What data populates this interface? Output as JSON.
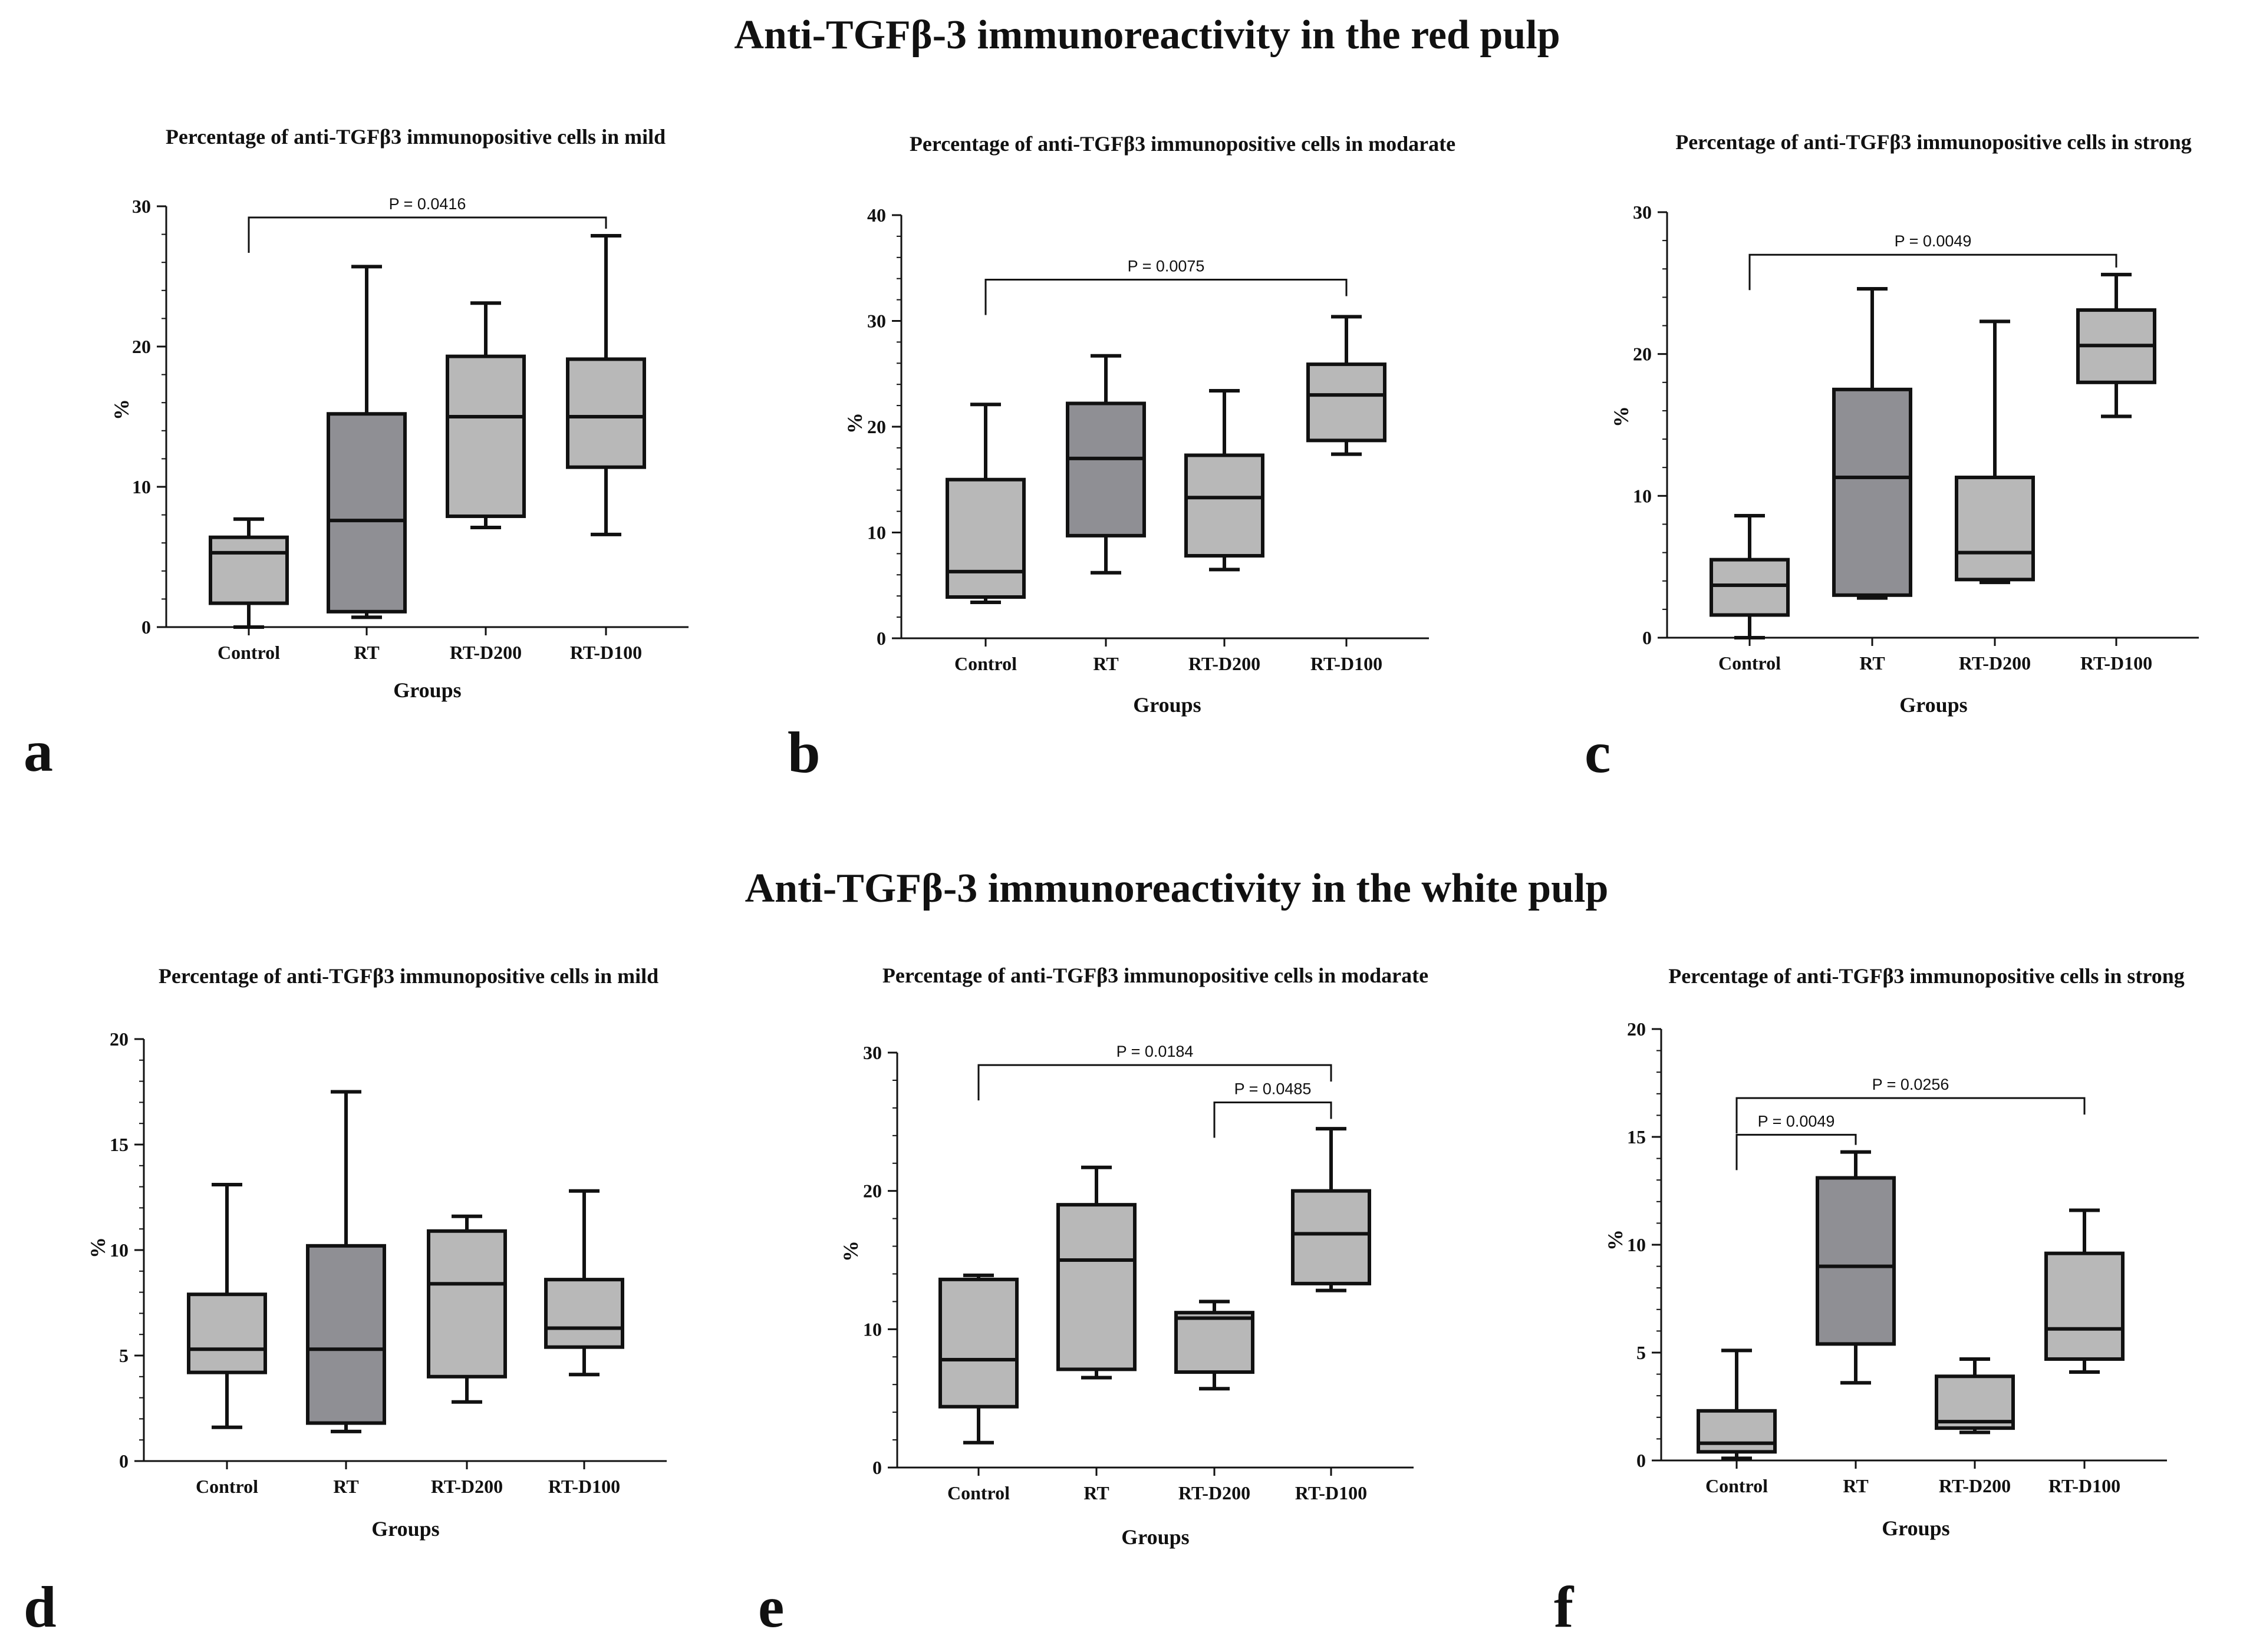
{
  "figure": {
    "section_titles": [
      "Anti-TGFβ-3 immunoreactivity in the red pulp",
      "Anti-TGFβ-3 immunoreactivity in the white pulp"
    ]
  },
  "colors": {
    "box_light": "#b8b8b8",
    "box_dark": "#8f8f94",
    "stroke": "#111111"
  },
  "chart_data": [
    {
      "type": "box",
      "letter": "a",
      "title": "Percentage of anti-TGFβ3 immunopositive cells in mild",
      "xlabel": "Groups",
      "ylabel": "%",
      "ylim": [
        0,
        30
      ],
      "yticks": [
        0,
        10,
        20,
        30
      ],
      "categories": [
        "Control",
        "RT",
        "RT-D200",
        "RT-D100"
      ],
      "boxes": [
        {
          "min": 0,
          "q1": 1.7,
          "median": 5.3,
          "q3": 6.4,
          "max": 7.7,
          "shade": "light"
        },
        {
          "min": 0.7,
          "q1": 1.1,
          "median": 7.6,
          "q3": 15.2,
          "max": 25.7,
          "shade": "dark"
        },
        {
          "min": 7.1,
          "q1": 7.9,
          "median": 15.0,
          "q3": 19.3,
          "max": 23.1,
          "shade": "light"
        },
        {
          "min": 6.6,
          "q1": 11.4,
          "median": 15.0,
          "q3": 19.1,
          "max": 27.9,
          "shade": "light"
        }
      ],
      "significance": [
        {
          "from": 0,
          "to": 3,
          "label": "P = 0.0416",
          "y": 29.2
        }
      ]
    },
    {
      "type": "box",
      "letter": "b",
      "title": "Percentage of anti-TGFβ3 immunopositive cells in modarate",
      "xlabel": "Groups",
      "ylabel": "%",
      "ylim": [
        0,
        40
      ],
      "yticks": [
        0,
        10,
        20,
        30,
        40
      ],
      "categories": [
        "Control",
        "RT",
        "RT-D200",
        "RT-D100"
      ],
      "boxes": [
        {
          "min": 3.4,
          "q1": 3.9,
          "median": 6.3,
          "q3": 15.0,
          "max": 22.1,
          "shade": "light"
        },
        {
          "min": 6.2,
          "q1": 9.7,
          "median": 17.0,
          "q3": 22.2,
          "max": 26.7,
          "shade": "dark"
        },
        {
          "min": 6.5,
          "q1": 7.8,
          "median": 13.3,
          "q3": 17.3,
          "max": 23.4,
          "shade": "light"
        },
        {
          "min": 17.4,
          "q1": 18.7,
          "median": 23.0,
          "q3": 25.9,
          "max": 30.4,
          "shade": "light"
        }
      ],
      "significance": [
        {
          "from": 0,
          "to": 3,
          "label": "P = 0.0075",
          "y": 33.9
        }
      ]
    },
    {
      "type": "box",
      "letter": "c",
      "title": "Percentage of anti-TGFβ3 immunopositive cells in strong",
      "xlabel": "Groups",
      "ylabel": "%",
      "ylim": [
        0,
        30
      ],
      "yticks": [
        0,
        10,
        20,
        30
      ],
      "categories": [
        "Control",
        "RT",
        "RT-D200",
        "RT-D100"
      ],
      "boxes": [
        {
          "min": 0,
          "q1": 1.6,
          "median": 3.7,
          "q3": 5.5,
          "max": 8.6,
          "shade": "light"
        },
        {
          "min": 2.8,
          "q1": 3.0,
          "median": 11.3,
          "q3": 17.5,
          "max": 24.6,
          "shade": "dark"
        },
        {
          "min": 3.9,
          "q1": 4.1,
          "median": 6.0,
          "q3": 11.3,
          "max": 22.3,
          "shade": "light"
        },
        {
          "min": 15.6,
          "q1": 18.0,
          "median": 20.6,
          "q3": 23.1,
          "max": 25.6,
          "shade": "light"
        }
      ],
      "significance": [
        {
          "from": 0,
          "to": 3,
          "label": "P = 0.0049",
          "y": 27.0
        }
      ]
    },
    {
      "type": "box",
      "letter": "d",
      "title": "Percentage of anti-TGFβ3 immunopositive cells in mild",
      "xlabel": "Groups",
      "ylabel": "%",
      "ylim": [
        0,
        20
      ],
      "yticks": [
        0,
        5,
        10,
        15,
        20
      ],
      "categories": [
        "Control",
        "RT",
        "RT-D200",
        "RT-D100"
      ],
      "boxes": [
        {
          "min": 1.6,
          "q1": 4.2,
          "median": 5.3,
          "q3": 7.9,
          "max": 13.1,
          "shade": "light"
        },
        {
          "min": 1.4,
          "q1": 1.8,
          "median": 5.3,
          "q3": 10.2,
          "max": 17.5,
          "shade": "dark"
        },
        {
          "min": 2.8,
          "q1": 4.0,
          "median": 8.4,
          "q3": 10.9,
          "max": 11.6,
          "shade": "light"
        },
        {
          "min": 4.1,
          "q1": 5.4,
          "median": 6.3,
          "q3": 8.6,
          "max": 12.8,
          "shade": "light"
        }
      ],
      "significance": []
    },
    {
      "type": "box",
      "letter": "e",
      "title": "Percentage of anti-TGFβ3 immunopositive cells in modarate",
      "xlabel": "Groups",
      "ylabel": "%",
      "ylim": [
        0,
        30
      ],
      "yticks": [
        0,
        10,
        20,
        30
      ],
      "categories": [
        "Control",
        "RT",
        "RT-D200",
        "RT-D100"
      ],
      "boxes": [
        {
          "min": 1.8,
          "q1": 4.4,
          "median": 7.8,
          "q3": 13.6,
          "max": 13.9,
          "shade": "light"
        },
        {
          "min": 6.5,
          "q1": 7.1,
          "median": 15.0,
          "q3": 19.0,
          "max": 21.7,
          "shade": "light"
        },
        {
          "min": 5.7,
          "q1": 6.9,
          "median": 10.8,
          "q3": 11.2,
          "max": 12.0,
          "shade": "light"
        },
        {
          "min": 12.8,
          "q1": 13.3,
          "median": 16.9,
          "q3": 20.0,
          "max": 24.5,
          "shade": "light"
        }
      ],
      "significance": [
        {
          "from": 0,
          "to": 3,
          "label": "P = 0.0184",
          "y": 29.1
        },
        {
          "from": 2,
          "to": 3,
          "label": "P = 0.0485",
          "y": 26.4
        }
      ]
    },
    {
      "type": "box",
      "letter": "f",
      "title": "Percentage of anti-TGFβ3 immunopositive cells in strong",
      "xlabel": "Groups",
      "ylabel": "%",
      "ylim": [
        0,
        20
      ],
      "yticks": [
        0,
        5,
        10,
        15,
        20
      ],
      "categories": [
        "Control",
        "RT",
        "RT-D200",
        "RT-D100"
      ],
      "boxes": [
        {
          "min": 0.1,
          "q1": 0.4,
          "median": 0.8,
          "q3": 2.3,
          "max": 5.1,
          "shade": "light"
        },
        {
          "min": 3.6,
          "q1": 5.4,
          "median": 9.0,
          "q3": 13.1,
          "max": 14.3,
          "shade": "dark"
        },
        {
          "min": 1.3,
          "q1": 1.5,
          "median": 1.8,
          "q3": 3.9,
          "max": 4.7,
          "shade": "light"
        },
        {
          "min": 4.1,
          "q1": 4.7,
          "median": 6.1,
          "q3": 9.6,
          "max": 11.6,
          "shade": "light"
        }
      ],
      "significance": [
        {
          "from": 0,
          "to": 3,
          "label": "P = 0.0256",
          "y": 16.8
        },
        {
          "from": 0,
          "to": 1,
          "label": "P = 0.0049",
          "y": 15.1
        }
      ]
    }
  ]
}
